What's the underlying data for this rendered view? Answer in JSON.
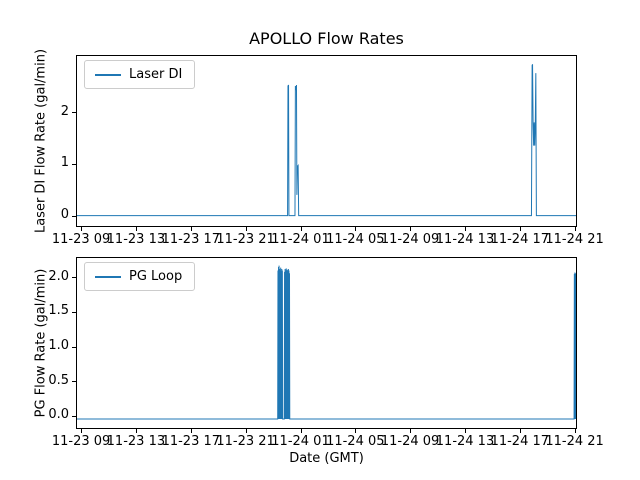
{
  "figure": {
    "title": "APOLLO Flow Rates",
    "xlabel": "Date (GMT)",
    "background": "#ffffff",
    "accent_line_color": "#1f77b4"
  },
  "chart_data": [
    {
      "type": "line",
      "title": "APOLLO Flow Rates",
      "ylabel": "Laser DI Flow Rate (gal/min)",
      "legend_position": "upper left",
      "grid": false,
      "x_encoding": "hours since 11-23 00:00 GMT",
      "xlim": [
        8.7,
        45.1
      ],
      "ylim": [
        -0.2,
        3.08
      ],
      "x_ticks": [
        9,
        13,
        17,
        21,
        25,
        29,
        33,
        37,
        41,
        45
      ],
      "x_tick_labels": [
        "11-23 09",
        "11-23 13",
        "11-23 17",
        "11-23 21",
        "11-24 01",
        "11-24 05",
        "11-24 09",
        "11-24 13",
        "11-24 17",
        "11-24 21"
      ],
      "y_ticks": [
        0,
        1,
        2
      ],
      "y_tick_labels": [
        "0",
        "1",
        "2"
      ],
      "series": [
        {
          "name": "Laser DI",
          "color": "#1f77b4",
          "points": [
            [
              8.7,
              0
            ],
            [
              24.06,
              0
            ],
            [
              24.09,
              2.5
            ],
            [
              24.13,
              2.52
            ],
            [
              24.16,
              0
            ],
            [
              24.6,
              0
            ],
            [
              24.63,
              2.5
            ],
            [
              24.67,
              2.42
            ],
            [
              24.71,
              2.52
            ],
            [
              24.74,
              0.4
            ],
            [
              24.77,
              0.95
            ],
            [
              24.83,
              0.97
            ],
            [
              24.87,
              0
            ],
            [
              41.85,
              0
            ],
            [
              41.9,
              2.9
            ],
            [
              41.93,
              2.92
            ],
            [
              41.97,
              1.8
            ],
            [
              42.01,
              1.35
            ],
            [
              42.05,
              1.8
            ],
            [
              42.09,
              1.35
            ],
            [
              42.13,
              1.75
            ],
            [
              42.17,
              2.75
            ],
            [
              42.21,
              0
            ],
            [
              45.1,
              0
            ]
          ]
        }
      ]
    },
    {
      "type": "line",
      "ylabel": "PG Flow Rate (gal/min)",
      "xlabel": "Date (GMT)",
      "legend_position": "upper left",
      "grid": false,
      "x_encoding": "hours since 11-23 00:00 GMT",
      "xlim": [
        8.7,
        45.1
      ],
      "ylim": [
        -0.18,
        2.28
      ],
      "x_ticks": [
        9,
        13,
        17,
        21,
        25,
        29,
        33,
        37,
        41,
        45
      ],
      "x_tick_labels": [
        "11-23 09",
        "11-23 13",
        "11-23 17",
        "11-23 21",
        "11-24 01",
        "11-24 05",
        "11-24 09",
        "11-24 13",
        "11-24 17",
        "11-24 21"
      ],
      "y_ticks": [
        0,
        0.5,
        1,
        1.5,
        2
      ],
      "y_tick_labels": [
        "0.0",
        "0.5",
        "1.0",
        "1.5",
        "2.0"
      ],
      "series": [
        {
          "name": "PG Loop",
          "color": "#1f77b4",
          "points": [
            [
              8.7,
              -0.05
            ],
            [
              23.34,
              -0.05
            ],
            [
              23.36,
              2.1
            ],
            [
              23.38,
              -0.05
            ],
            [
              23.4,
              2.15
            ],
            [
              23.42,
              -0.05
            ],
            [
              23.44,
              2.17
            ],
            [
              23.46,
              -0.05
            ],
            [
              23.48,
              2.12
            ],
            [
              23.5,
              -0.05
            ],
            [
              23.52,
              2.1
            ],
            [
              23.54,
              -0.05
            ],
            [
              23.56,
              2.14
            ],
            [
              23.58,
              -0.05
            ],
            [
              23.6,
              2.09
            ],
            [
              23.62,
              -0.05
            ],
            [
              23.64,
              2.12
            ],
            [
              23.66,
              -0.05
            ],
            [
              23.68,
              2.1
            ],
            [
              23.7,
              -0.05
            ],
            [
              23.82,
              -0.05
            ],
            [
              23.84,
              2.08
            ],
            [
              23.86,
              -0.05
            ],
            [
              23.88,
              2.12
            ],
            [
              23.9,
              -0.05
            ],
            [
              23.92,
              2.1
            ],
            [
              23.94,
              -0.05
            ],
            [
              23.96,
              2.13
            ],
            [
              23.98,
              -0.05
            ],
            [
              24.0,
              2.1
            ],
            [
              24.02,
              -0.05
            ],
            [
              24.04,
              2.11
            ],
            [
              24.06,
              -0.05
            ],
            [
              24.08,
              2.09
            ],
            [
              24.1,
              -0.05
            ],
            [
              24.12,
              2.12
            ],
            [
              24.14,
              -0.05
            ],
            [
              24.16,
              2.1
            ],
            [
              24.18,
              -0.05
            ],
            [
              24.2,
              2.06
            ],
            [
              24.22,
              -0.05
            ],
            [
              44.96,
              -0.05
            ],
            [
              44.98,
              2.05
            ],
            [
              45.0,
              -0.05
            ],
            [
              45.02,
              2.07
            ],
            [
              45.04,
              -0.05
            ],
            [
              45.06,
              2.05
            ],
            [
              45.08,
              -0.05
            ],
            [
              45.1,
              2.06
            ]
          ]
        }
      ]
    }
  ]
}
